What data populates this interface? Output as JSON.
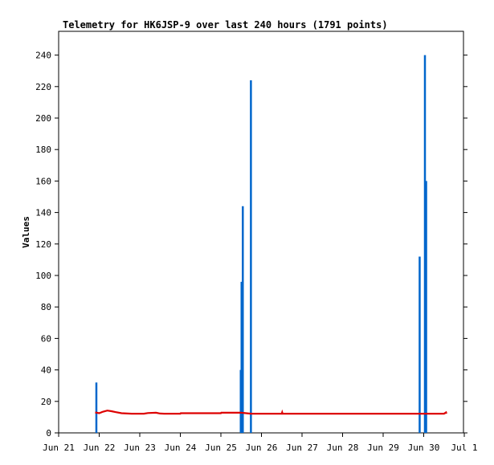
{
  "chart_data": {
    "type": "line",
    "title": "Telemetry for HK6JSP-9 over last 240 hours (1791 points)",
    "xlabel": "",
    "ylabel": "Values",
    "ylim": [
      0,
      255
    ],
    "yticks": [
      0,
      20,
      40,
      60,
      80,
      100,
      120,
      140,
      160,
      180,
      200,
      220,
      240
    ],
    "xlim": [
      0,
      10
    ],
    "xticks": [
      {
        "pos": 0,
        "label": "Jun 21"
      },
      {
        "pos": 1,
        "label": "Jun 22"
      },
      {
        "pos": 2,
        "label": "Jun 23"
      },
      {
        "pos": 3,
        "label": "Jun 24"
      },
      {
        "pos": 4,
        "label": "Jun 25"
      },
      {
        "pos": 5,
        "label": "Jun 26"
      },
      {
        "pos": 6,
        "label": "Jun 27"
      },
      {
        "pos": 7,
        "label": "Jun 28"
      },
      {
        "pos": 8,
        "label": "Jun 29"
      },
      {
        "pos": 9,
        "label": "Jun 30"
      },
      {
        "pos": 10,
        "label": "Jul 1"
      }
    ],
    "grid": false,
    "series": [
      {
        "color": "#0066cc",
        "style": "spikes",
        "points": [
          {
            "x": 0.93,
            "y": 32
          },
          {
            "x": 4.49,
            "y": 40
          },
          {
            "x": 4.51,
            "y": 96
          },
          {
            "x": 4.54,
            "y": 144
          },
          {
            "x": 4.74,
            "y": 224
          },
          {
            "x": 8.9,
            "y": 112
          },
          {
            "x": 9.03,
            "y": 240
          },
          {
            "x": 9.06,
            "y": 160
          }
        ]
      },
      {
        "color": "#dd0000",
        "style": "line",
        "points": [
          {
            "x": 0.9,
            "y": 13
          },
          {
            "x": 1.0,
            "y": 12.5
          },
          {
            "x": 1.1,
            "y": 13.5
          },
          {
            "x": 1.2,
            "y": 14.2
          },
          {
            "x": 1.3,
            "y": 13.8
          },
          {
            "x": 1.4,
            "y": 13.2
          },
          {
            "x": 1.55,
            "y": 12.5
          },
          {
            "x": 1.8,
            "y": 12.2
          },
          {
            "x": 2.1,
            "y": 12.2
          },
          {
            "x": 2.2,
            "y": 12.6
          },
          {
            "x": 2.4,
            "y": 12.8
          },
          {
            "x": 2.5,
            "y": 12.3
          },
          {
            "x": 2.6,
            "y": 12.2
          },
          {
            "x": 3.0,
            "y": 12.2
          },
          {
            "x": 3.01,
            "y": 12.5
          },
          {
            "x": 4.0,
            "y": 12.5
          },
          {
            "x": 4.01,
            "y": 12.8
          },
          {
            "x": 4.5,
            "y": 12.8
          },
          {
            "x": 4.74,
            "y": 12.2
          },
          {
            "x": 5.5,
            "y": 12.2
          },
          {
            "x": 5.51,
            "y": 13.0
          },
          {
            "x": 5.52,
            "y": 12.2
          },
          {
            "x": 9.5,
            "y": 12.2
          },
          {
            "x": 9.55,
            "y": 13.0
          },
          {
            "x": 9.56,
            "y": 12.2
          }
        ]
      }
    ]
  }
}
